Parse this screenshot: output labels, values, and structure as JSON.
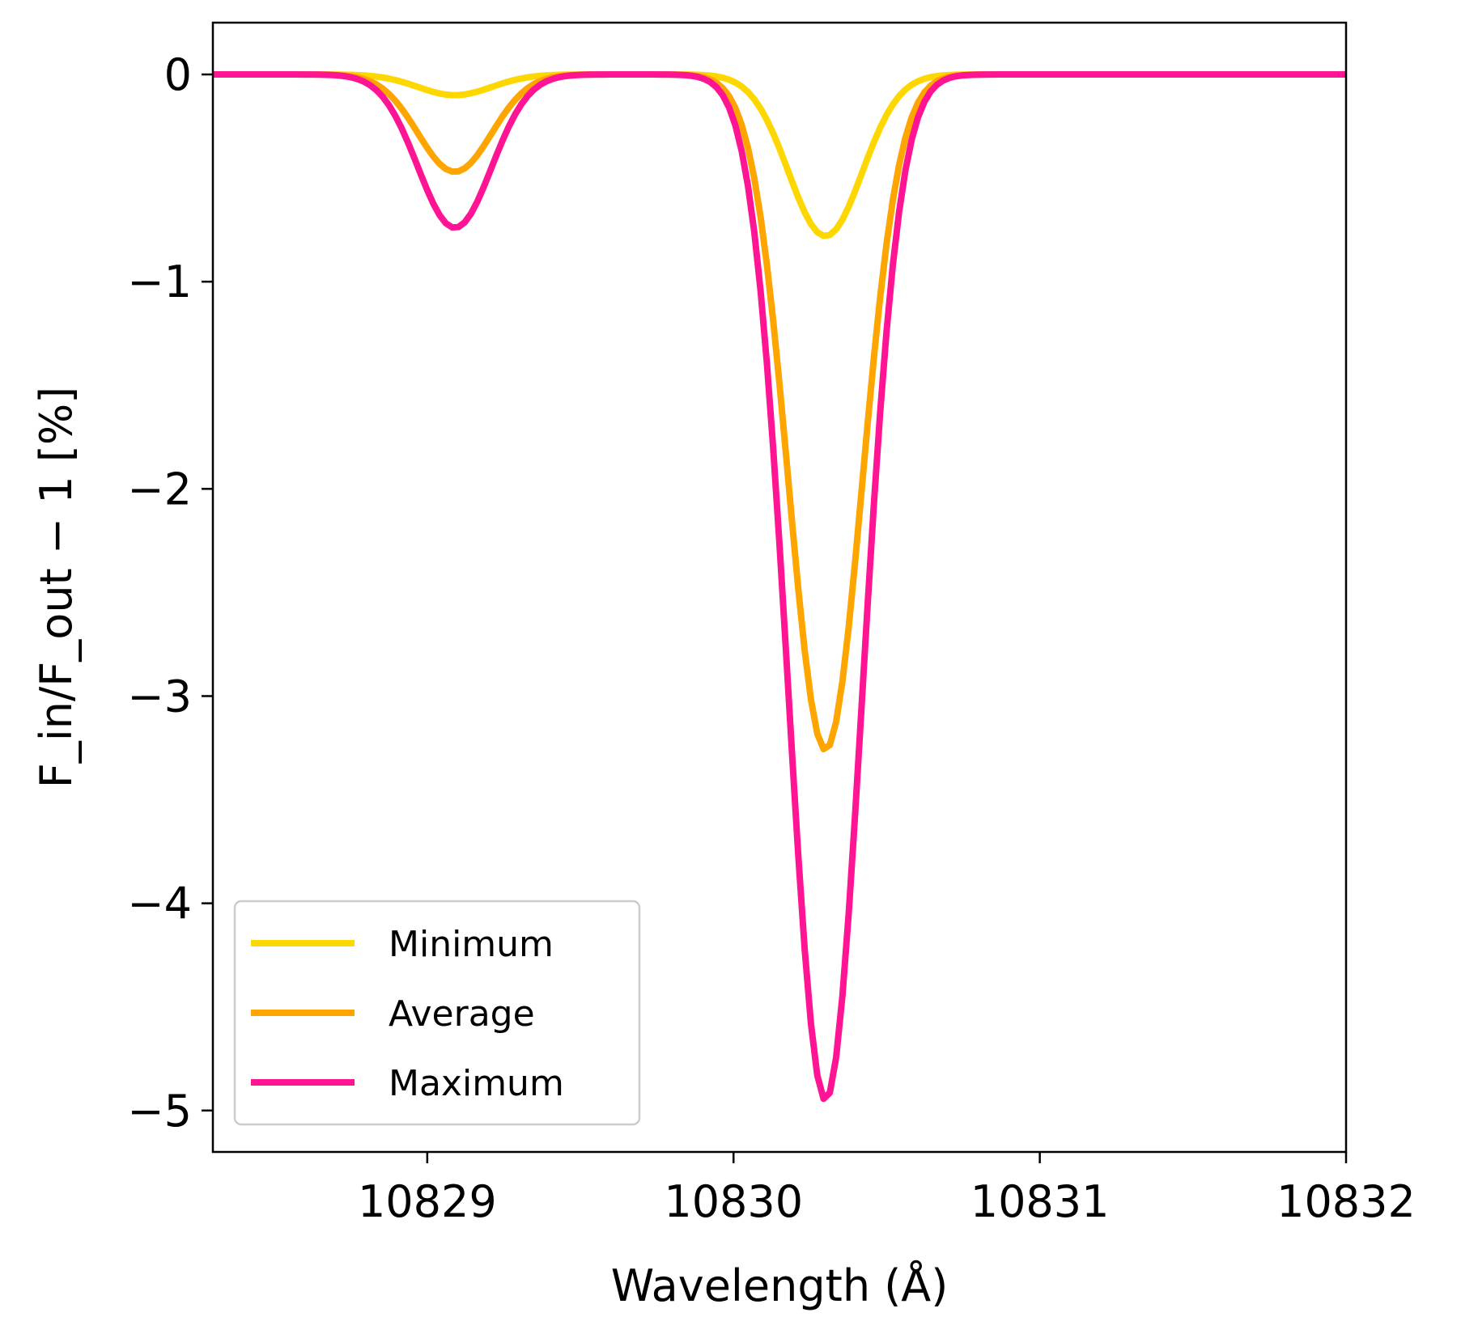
{
  "chart_data": {
    "type": "line",
    "xlabel": "Wavelength (Å)",
    "ylabel": "F_in/F_out − 1 [%]",
    "xlim": [
      10828.3,
      10832.0
    ],
    "ylim": [
      -5.2,
      0.25
    ],
    "xticks": [
      10829,
      10830,
      10831,
      10832
    ],
    "yticks": [
      0,
      -1,
      -2,
      -3,
      -4,
      -5
    ],
    "xtick_labels": [
      "10829",
      "10830",
      "10831",
      "10832"
    ],
    "ytick_labels": [
      "0",
      "−1",
      "−2",
      "−3",
      "−4",
      "−5"
    ],
    "grid": false,
    "legend": "lower-left",
    "line_model": "sum of two gaussian absorption features; each series gives depth (%) at given center wavelengths",
    "features": [
      {
        "center": 10829.09,
        "sigma": 0.12
      },
      {
        "center": 10830.3,
        "sigma": 0.12
      }
    ],
    "series": [
      {
        "name": "Minimum",
        "color": "#FFD700",
        "depths": [
          0.1,
          0.78
        ]
      },
      {
        "name": "Average",
        "color": "#FFA500",
        "depths": [
          0.47,
          3.26
        ]
      },
      {
        "name": "Maximum",
        "color": "#FF1493",
        "depths": [
          0.74,
          4.95
        ]
      }
    ]
  }
}
